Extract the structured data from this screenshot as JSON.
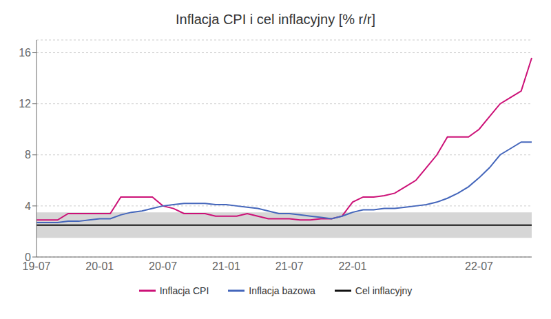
{
  "chart_data": {
    "type": "line",
    "title": "Inflacja CPI i cel inflacyjny [% r/r]",
    "categories": [
      "19-07",
      null,
      null,
      null,
      null,
      null,
      "20-01",
      null,
      null,
      null,
      null,
      null,
      "20-07",
      null,
      null,
      null,
      null,
      null,
      "21-01",
      null,
      null,
      null,
      null,
      null,
      "21-07",
      null,
      null,
      null,
      null,
      null,
      "22-01",
      null,
      null,
      null,
      null,
      null,
      null,
      null,
      null,
      null,
      null,
      null,
      "22-07",
      null,
      null,
      null,
      null,
      null
    ],
    "series": [
      {
        "name": "Inflacja CPI",
        "color": "#CC1177",
        "values": [
          2.9,
          2.9,
          2.9,
          3.4,
          3.4,
          3.4,
          3.4,
          3.4,
          4.7,
          4.7,
          4.7,
          4.7,
          4.0,
          3.8,
          3.4,
          3.4,
          3.4,
          3.2,
          3.2,
          3.2,
          3.4,
          3.2,
          3.0,
          3.0,
          3.0,
          2.9,
          2.9,
          3.0,
          3.0,
          3.2,
          4.3,
          4.7,
          4.7,
          4.8,
          5.0,
          5.5,
          6.0,
          7.0,
          8.0,
          9.4,
          9.4,
          9.4,
          10.0,
          11.0,
          12.0,
          12.5,
          13.0,
          15.6
        ]
      },
      {
        "name": "Inflacja bazowa",
        "color": "#4466BB",
        "values": [
          2.7,
          2.7,
          2.7,
          2.8,
          2.8,
          2.9,
          3.0,
          3.0,
          3.3,
          3.5,
          3.6,
          3.8,
          4.0,
          4.1,
          4.2,
          4.2,
          4.2,
          4.1,
          4.1,
          4.0,
          3.9,
          3.8,
          3.6,
          3.4,
          3.4,
          3.3,
          3.2,
          3.1,
          3.0,
          3.2,
          3.5,
          3.7,
          3.7,
          3.8,
          3.8,
          3.9,
          4.0,
          4.1,
          4.3,
          4.6,
          5.0,
          5.5,
          6.2,
          7.0,
          8.0,
          8.5,
          9.0,
          9.0
        ]
      }
    ],
    "reference_lines": [
      {
        "name": "Cel inflacyjny",
        "value": 2.5,
        "color": "#111111"
      }
    ],
    "bands": [
      {
        "lower": 1.5,
        "upper": 3.5,
        "color": "#cccccc"
      }
    ],
    "ylim": [
      0,
      17
    ],
    "yticks": [
      0,
      4,
      8,
      12,
      16
    ],
    "grid": true,
    "legend": "bottom"
  }
}
